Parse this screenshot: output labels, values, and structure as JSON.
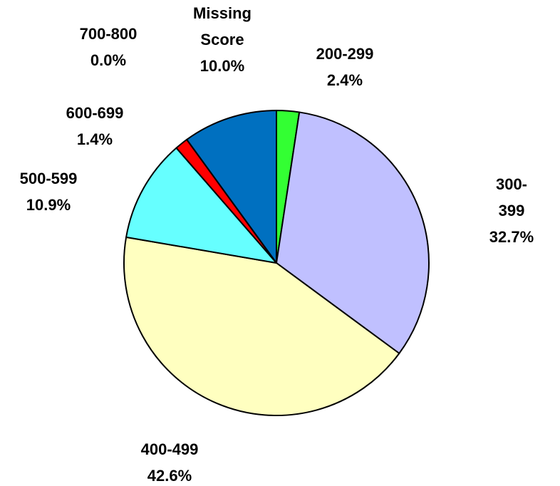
{
  "chart_data": {
    "type": "pie",
    "categories": [
      "200-299",
      "300-399",
      "400-499",
      "500-599",
      "600-699",
      "700-800",
      "Missing Score"
    ],
    "values": [
      2.4,
      32.7,
      42.6,
      10.9,
      1.4,
      0.0,
      10.0
    ],
    "value_labels": [
      "2.4%",
      "32.7%",
      "42.6%",
      "10.9%",
      "1.4%",
      "0.0%",
      "10.0%"
    ],
    "colors": [
      "#33ff33",
      "#c0c0ff",
      "#ffffc0",
      "#66ffff",
      "#ff0000",
      "#ffffff",
      "#0070c0"
    ]
  }
}
